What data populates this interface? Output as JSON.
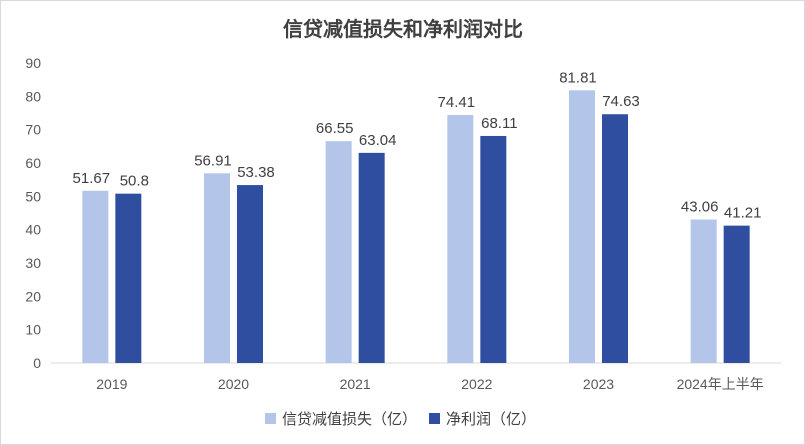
{
  "chart_data": {
    "type": "bar",
    "title": "信贷减值损失和净利润对比",
    "categories": [
      "2019",
      "2020",
      "2021",
      "2022",
      "2023",
      "2024年上半年"
    ],
    "series": [
      {
        "name": "信贷减值损失（亿）",
        "color": "#b4c5ea",
        "values": [
          51.67,
          56.91,
          66.55,
          74.41,
          81.81,
          43.06
        ]
      },
      {
        "name": "净利润（亿）",
        "color": "#2f4ea0",
        "values": [
          50.8,
          53.38,
          63.04,
          68.11,
          74.63,
          41.21
        ]
      }
    ],
    "yticks": [
      0,
      10,
      20,
      30,
      40,
      50,
      60,
      70,
      80,
      90
    ],
    "ylim": [
      0,
      90
    ],
    "xlabel": "",
    "ylabel": "",
    "grid": false,
    "legend": "bottom"
  }
}
